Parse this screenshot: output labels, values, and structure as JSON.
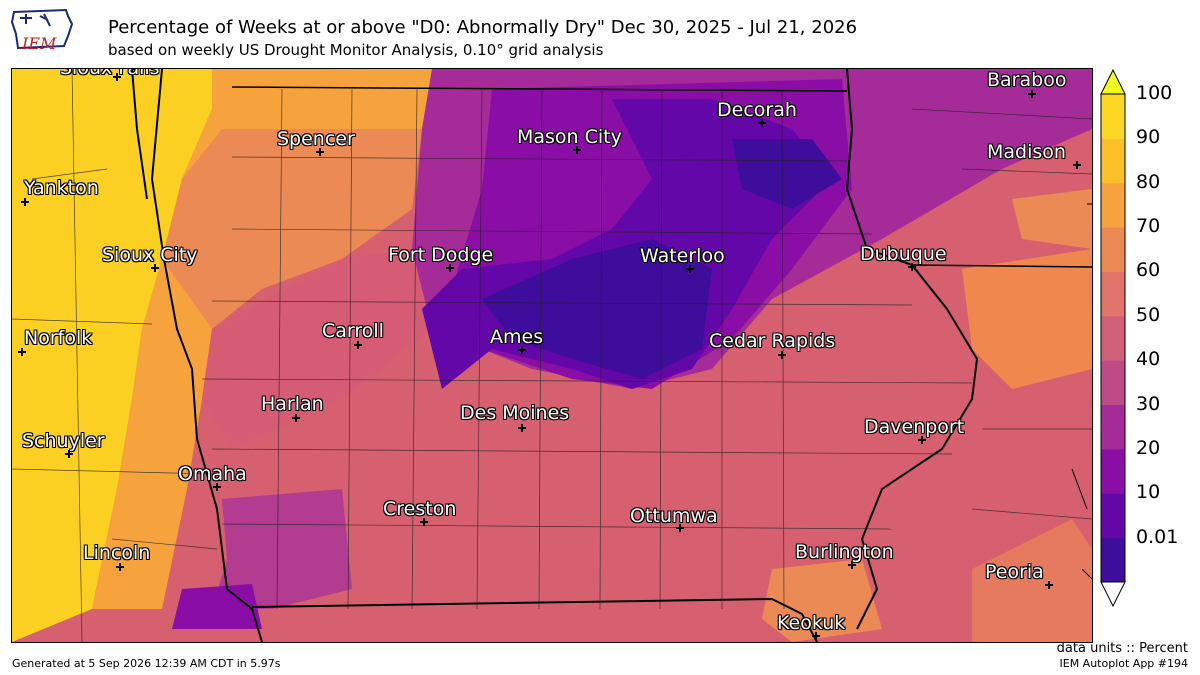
{
  "header": {
    "logo_text": "IEM",
    "title": "Percentage of Weeks at or above \"D0: Abnormally Dry\" Dec 30, 2025 - Jul 21, 2026",
    "subtitle": "based on weekly US Drought Monitor Analysis, 0.10° grid analysis"
  },
  "colorbar": {
    "labels": [
      "100",
      "90",
      "80",
      "70",
      "60",
      "50",
      "40",
      "30",
      "20",
      "10",
      "0.01"
    ],
    "colors": [
      "#3f0d9b",
      "#6307a8",
      "#8a0ea5",
      "#a52c98",
      "#be4a86",
      "#d0607a",
      "#e0746a",
      "#ec8a55",
      "#f6a33d",
      "#fbbf29",
      "#fcd724"
    ],
    "over_color": "#f0f921",
    "under_color": "#ffffff"
  },
  "cities": [
    {
      "name": "Sioux Falls"
    },
    {
      "name": "Baraboo"
    },
    {
      "name": "Decorah"
    },
    {
      "name": "Spencer"
    },
    {
      "name": "Mason City"
    },
    {
      "name": "Madison"
    },
    {
      "name": "Yankton"
    },
    {
      "name": "Sioux City"
    },
    {
      "name": "Fort Dodge"
    },
    {
      "name": "Waterloo"
    },
    {
      "name": "Dubuque"
    },
    {
      "name": "Norfolk"
    },
    {
      "name": "Carroll"
    },
    {
      "name": "Ames"
    },
    {
      "name": "Cedar Rapids"
    },
    {
      "name": "Harlan"
    },
    {
      "name": "Des Moines"
    },
    {
      "name": "Davenport"
    },
    {
      "name": "Schuyler"
    },
    {
      "name": "Omaha"
    },
    {
      "name": "Creston"
    },
    {
      "name": "Ottumwa"
    },
    {
      "name": "Lincoln"
    },
    {
      "name": "Burlington"
    },
    {
      "name": "Peoria"
    },
    {
      "name": "Keokuk"
    }
  ],
  "footer": {
    "units": "data units :: Percent",
    "generated": "Generated at 5 Sep 2026 12:39 AM CDT in 5.97s",
    "app": "IEM Autoplot App #194"
  }
}
